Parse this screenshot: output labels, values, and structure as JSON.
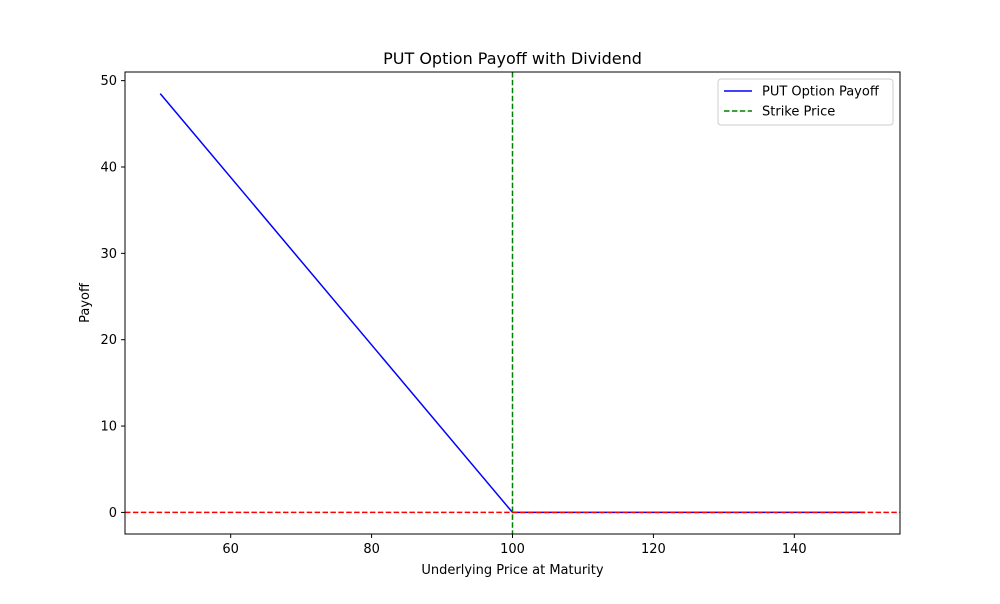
{
  "chart_data": {
    "type": "line",
    "title": "PUT Option Payoff with Dividend",
    "xlabel": "Underlying Price at Maturity",
    "ylabel": "Payoff",
    "xlim": [
      45,
      155
    ],
    "ylim": [
      -2.5,
      51
    ],
    "x_ticks": [
      60,
      80,
      100,
      120,
      140
    ],
    "y_ticks": [
      0,
      10,
      20,
      30,
      40,
      50
    ],
    "grid": false,
    "legend_position": "top-right",
    "series": [
      {
        "name": "PUT Option Payoff",
        "color": "#0000ff",
        "style": "solid",
        "x": [
          50,
          100,
          150
        ],
        "y": [
          48.5,
          0,
          0
        ]
      }
    ],
    "reference_lines": [
      {
        "name": "Strike Price",
        "orientation": "vertical",
        "value": 100,
        "color": "#008000",
        "style": "dashed",
        "in_legend": true
      },
      {
        "name": "",
        "orientation": "horizontal",
        "value": 0,
        "color": "#ff0000",
        "style": "dashed",
        "in_legend": false
      }
    ],
    "legend": [
      "PUT Option Payoff",
      "Strike Price"
    ]
  }
}
